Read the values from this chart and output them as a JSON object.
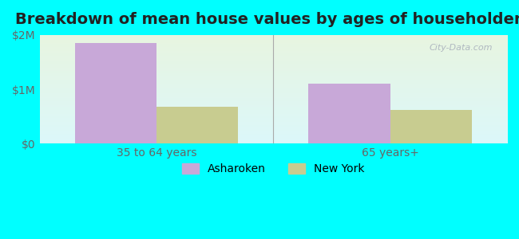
{
  "title": "Breakdown of mean house values by ages of householders",
  "categories": [
    "35 to 64 years",
    "65 years+"
  ],
  "series": {
    "Asharoken": [
      1850000,
      1100000
    ],
    "New York": [
      680000,
      620000
    ]
  },
  "bar_colors": {
    "Asharoken": "#c8a8d8",
    "New York": "#c8cc90"
  },
  "ylim": [
    0,
    2000000
  ],
  "yticks": [
    0,
    1000000,
    2000000
  ],
  "ytick_labels": [
    "$0",
    "$1M",
    "$2M"
  ],
  "background_color": "#00ffff",
  "title_fontsize": 14,
  "tick_fontsize": 10,
  "legend_fontsize": 10,
  "bar_width": 0.35,
  "watermark": "City-Data.com"
}
